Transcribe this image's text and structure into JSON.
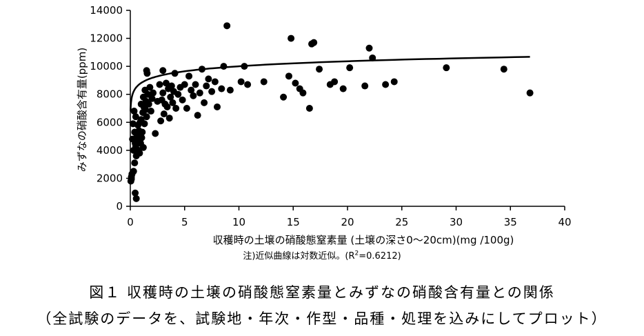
{
  "chart_data": {
    "type": "scatter",
    "xlabel": "収穫時の土壌の硝酸態窒素量 (土壌の深さ0～20cm)(mg /100g)",
    "ylabel": "みずなの硝酸含有量(ppm)",
    "xlim": [
      0,
      40
    ],
    "ylim": [
      0,
      14000
    ],
    "x_ticks": [
      "0",
      "5",
      "10",
      "15",
      "20",
      "25",
      "30",
      "35",
      "40"
    ],
    "y_ticks": [
      "0",
      "2000",
      "4000",
      "6000",
      "8000",
      "10000",
      "12000",
      "14000"
    ],
    "grid": false,
    "trendline": {
      "type": "logarithmic",
      "a": 8813.7,
      "b": 517.0,
      "x_range": [
        0.02,
        36.8
      ]
    },
    "points": [
      [
        0.05,
        1800
      ],
      [
        0.1,
        2100
      ],
      [
        0.1,
        1950
      ],
      [
        0.15,
        2300
      ],
      [
        0.2,
        4800
      ],
      [
        0.25,
        5900
      ],
      [
        0.3,
        4000
      ],
      [
        0.3,
        2500
      ],
      [
        0.35,
        6800
      ],
      [
        0.4,
        5300
      ],
      [
        0.4,
        3100
      ],
      [
        0.45,
        950
      ],
      [
        0.45,
        4500
      ],
      [
        0.5,
        4300
      ],
      [
        0.5,
        6400
      ],
      [
        0.55,
        550
      ],
      [
        0.55,
        3600
      ],
      [
        0.6,
        5100
      ],
      [
        0.65,
        4700
      ],
      [
        0.7,
        5800
      ],
      [
        0.75,
        4000
      ],
      [
        0.8,
        5400
      ],
      [
        0.85,
        3800
      ],
      [
        0.9,
        6000
      ],
      [
        0.95,
        4500
      ],
      [
        1.0,
        7300
      ],
      [
        1.0,
        6200
      ],
      [
        1.05,
        4900
      ],
      [
        1.1,
        5300
      ],
      [
        1.15,
        6700
      ],
      [
        1.2,
        7800
      ],
      [
        1.2,
        4200
      ],
      [
        1.25,
        7100
      ],
      [
        1.3,
        5900
      ],
      [
        1.35,
        8300
      ],
      [
        1.4,
        6900
      ],
      [
        1.45,
        7500
      ],
      [
        1.5,
        9700
      ],
      [
        1.5,
        6400
      ],
      [
        1.55,
        9500
      ],
      [
        1.6,
        8000
      ],
      [
        1.7,
        7300
      ],
      [
        1.8,
        8500
      ],
      [
        1.9,
        6800
      ],
      [
        2.0,
        7700
      ],
      [
        2.1,
        8100
      ],
      [
        2.3,
        5200
      ],
      [
        2.5,
        7500
      ],
      [
        2.7,
        8700
      ],
      [
        2.8,
        6100
      ],
      [
        2.9,
        7600
      ],
      [
        3.0,
        9700
      ],
      [
        3.0,
        8100
      ],
      [
        3.1,
        6600
      ],
      [
        3.2,
        7300
      ],
      [
        3.3,
        8800
      ],
      [
        3.4,
        7100
      ],
      [
        3.5,
        8400
      ],
      [
        3.6,
        6300
      ],
      [
        3.7,
        7800
      ],
      [
        3.8,
        8600
      ],
      [
        3.9,
        7400
      ],
      [
        4.0,
        8200
      ],
      [
        4.1,
        9500
      ],
      [
        4.2,
        7000
      ],
      [
        4.4,
        8000
      ],
      [
        4.6,
        8500
      ],
      [
        4.8,
        7600
      ],
      [
        5.0,
        8700
      ],
      [
        5.2,
        7000
      ],
      [
        5.4,
        9300
      ],
      [
        5.6,
        8300
      ],
      [
        5.8,
        7900
      ],
      [
        6.0,
        8700
      ],
      [
        6.2,
        6500
      ],
      [
        6.4,
        8100
      ],
      [
        6.6,
        9800
      ],
      [
        6.8,
        7400
      ],
      [
        7.0,
        8600
      ],
      [
        7.2,
        9100
      ],
      [
        7.5,
        8200
      ],
      [
        7.8,
        8900
      ],
      [
        8.0,
        7100
      ],
      [
        8.4,
        8400
      ],
      [
        8.6,
        10000
      ],
      [
        8.9,
        12900
      ],
      [
        9.2,
        8300
      ],
      [
        10.2,
        8900
      ],
      [
        10.5,
        10000
      ],
      [
        10.8,
        8700
      ],
      [
        12.3,
        8900
      ],
      [
        14.1,
        7800
      ],
      [
        14.6,
        9300
      ],
      [
        14.8,
        12000
      ],
      [
        15.2,
        8800
      ],
      [
        15.6,
        8400
      ],
      [
        15.9,
        8100
      ],
      [
        16.5,
        7000
      ],
      [
        16.7,
        11600
      ],
      [
        16.9,
        11700
      ],
      [
        17.4,
        9800
      ],
      [
        18.4,
        8700
      ],
      [
        18.8,
        8900
      ],
      [
        19.6,
        8400
      ],
      [
        20.2,
        9900
      ],
      [
        21.6,
        8600
      ],
      [
        22.0,
        11300
      ],
      [
        22.3,
        10600
      ],
      [
        23.5,
        8700
      ],
      [
        24.3,
        8900
      ],
      [
        29.1,
        9900
      ],
      [
        34.4,
        9800
      ],
      [
        36.8,
        8100
      ]
    ]
  },
  "note": {
    "prefix": "注)近似曲線は対数近似。(R",
    "sup": "2",
    "suffix": "=0.6212)"
  },
  "caption": {
    "line1": "図１ 収穫時の土壌の硝酸態窒素量とみずなの硝酸含有量との関係",
    "line2": "（全試験のデータを、試験地・年次・作型・品種・処理を込みにしてプロット）"
  }
}
